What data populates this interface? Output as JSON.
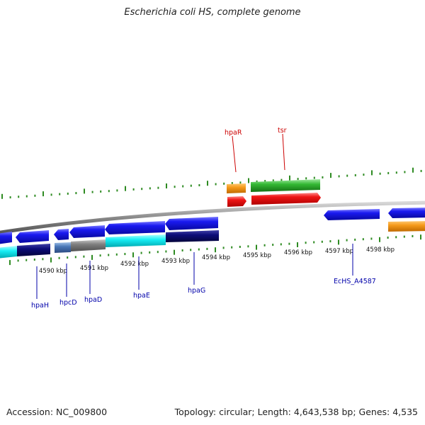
{
  "title": "Escherichia coli HS, complete genome",
  "footer": {
    "accession": "Accession: NC_009800",
    "topology": "Topology: circular; Length: 4,643,538 bp; Genes: 4,535"
  },
  "scale_labels": [
    "4590 kbp",
    "4591 kbp",
    "4592 kbp",
    "4593 kbp",
    "4594 kbp",
    "4595 kbp",
    "4596 kbp",
    "4597 kbp",
    "4598 kbp"
  ],
  "gene_labels": {
    "forward": [
      "hpaR",
      "tsr"
    ],
    "reverse": [
      "hpaH",
      "hpcD",
      "hpaD",
      "hpaE",
      "hpaG",
      "EcHS_A4587"
    ]
  },
  "colors": {
    "forward_label": "#cc0000",
    "reverse_label": "#0000aa",
    "tick": "#2e8b22",
    "backbone": "#888888",
    "cds_blue": "#1010e0",
    "cds_red": "#e81010",
    "orange": "#f09010",
    "green": "#30b030",
    "cyan": "#10e8f0",
    "navy": "#0a0a70",
    "gray": "#777777",
    "steel": "#4a7ab8"
  }
}
